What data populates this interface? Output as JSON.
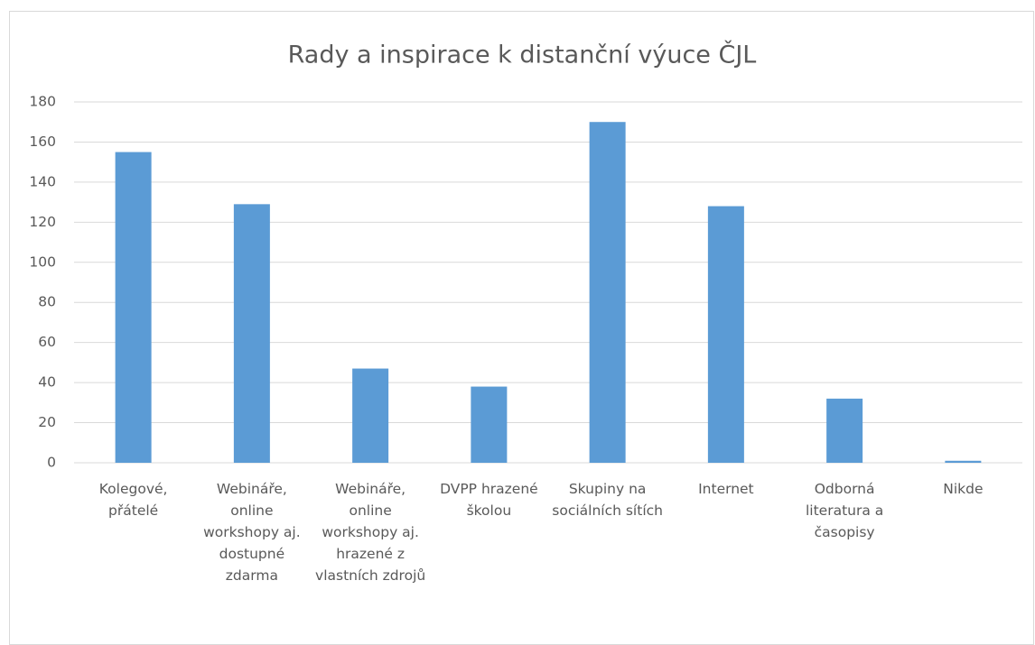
{
  "chart_data": {
    "type": "bar",
    "title": "Rady a inspirace k distanční výuce ČJL",
    "categories": [
      "Kolegové, přátelé",
      "Webináře, online workshopy aj. dostupné zdarma",
      "Webináře, online workshopy aj. hrazené z vlastních zdrojů",
      "DVPP hrazené školou",
      "Skupiny na sociálních sítích",
      "Internet",
      "Odborná literatura a časopisy",
      "Nikde"
    ],
    "values": [
      155,
      129,
      47,
      38,
      170,
      128,
      32,
      1
    ],
    "color": "#5b9bd5",
    "ylim": [
      0,
      180
    ],
    "yticks": [
      0,
      20,
      40,
      60,
      80,
      100,
      120,
      140,
      160,
      180
    ],
    "grid": true
  }
}
